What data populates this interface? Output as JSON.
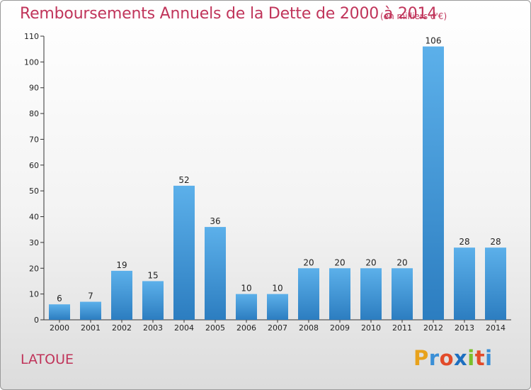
{
  "header": {
    "title": "Remboursements Annuels de la Dette de 2000 à 2014",
    "subtitle": "(en milliers d'€)"
  },
  "footer": {
    "commune": "LATOUE",
    "brand_letters": [
      "P",
      "r",
      "o",
      "x",
      "i",
      "t",
      "i"
    ],
    "brand_colors": [
      "#e8a21c",
      "#3a8fd6",
      "#e24b2a",
      "#1d6fc0",
      "#7bbf2a",
      "#e24b2a",
      "#3a8fd6"
    ]
  },
  "colors": {
    "accent": "#c0345a",
    "bar_light": "#5cb0ea",
    "bar_dark": "#2c7dc0"
  },
  "chart_data": {
    "type": "bar",
    "title": "Remboursements Annuels de la Dette de 2000 à 2014",
    "subtitle": "(en milliers d'€)",
    "categories": [
      "2000",
      "2001",
      "2002",
      "2003",
      "2004",
      "2005",
      "2006",
      "2007",
      "2008",
      "2009",
      "2010",
      "2011",
      "2012",
      "2013",
      "2014"
    ],
    "values": [
      6,
      7,
      19,
      15,
      52,
      36,
      10,
      10,
      20,
      20,
      20,
      20,
      106,
      28,
      28
    ],
    "value_labels": [
      "6",
      "7",
      "19",
      "15",
      "52",
      "36",
      "10",
      "10",
      "20",
      "20",
      "20",
      "20",
      "106",
      "28",
      "28"
    ],
    "ylim": [
      0,
      110
    ],
    "yticks": [
      "0",
      "10",
      "20",
      "30",
      "40",
      "50",
      "60",
      "70",
      "80",
      "90",
      "100",
      "110"
    ],
    "grid": false,
    "legend": "none"
  }
}
